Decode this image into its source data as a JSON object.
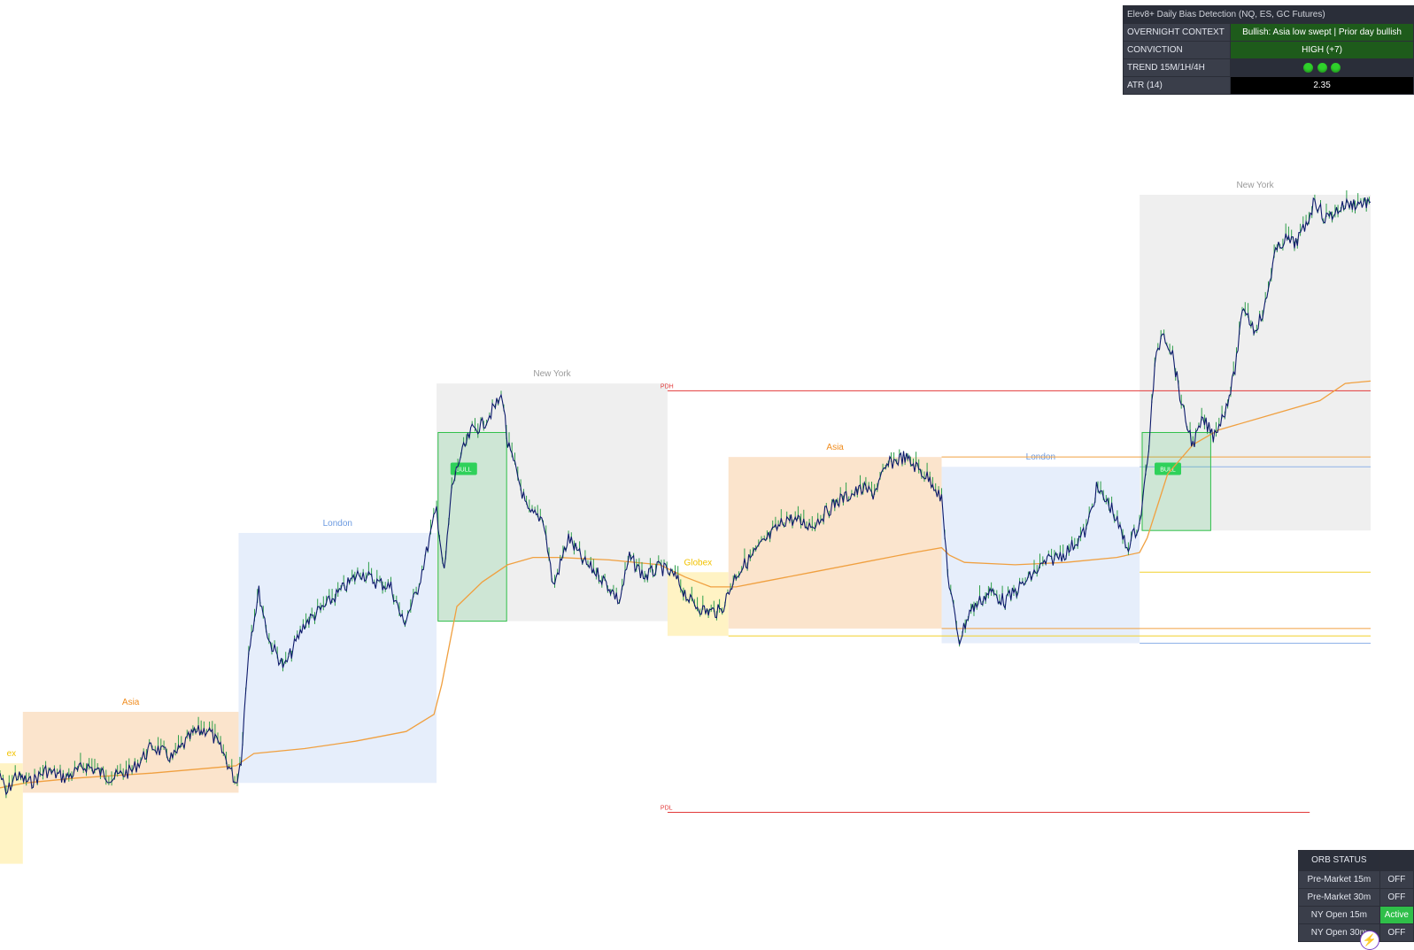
{
  "bias_panel": {
    "title": "Elev8+ Daily Bias Detection (NQ, ES, GC Futures)",
    "rows": [
      {
        "label": "OVERNIGHT CONTEXT",
        "value": "Bullish: Asia low swept | Prior day bullish"
      },
      {
        "label": "CONVICTION",
        "value": "HIGH (+7)"
      },
      {
        "label": "TREND 15M/1H/4H",
        "value": "",
        "dots": 3
      },
      {
        "label": "ATR (14)",
        "value": "2.35"
      }
    ]
  },
  "orb_panel": {
    "title": "ORB STATUS",
    "rows": [
      {
        "label": "Pre-Market 15m",
        "status": "OFF"
      },
      {
        "label": "Pre-Market 30m",
        "status": "OFF"
      },
      {
        "label": "NY Open 15m",
        "status": "Active"
      },
      {
        "label": "NY Open 30m",
        "status": "OFF"
      }
    ]
  },
  "chart_data": {
    "type": "candlestick",
    "sessions": [
      {
        "name": "Globex",
        "label": "ex",
        "color": "#fff3c4",
        "text_color": "#f2c200",
        "x0": 0.0,
        "x1": 0.045,
        "low": 0.07,
        "high": 0.48
      },
      {
        "name": "Asia",
        "label": "Asia",
        "color": "#fbe4cc",
        "text_color": "#f08c1e",
        "x0": 0.045,
        "x1": 0.47,
        "low": 0.36,
        "high": 0.69
      },
      {
        "name": "London",
        "label": "London",
        "color": "#e6eefb",
        "text_color": "#6b9ae0",
        "x0": 0.47,
        "x1": 0.86,
        "low": 0.4,
        "high": 1.42
      },
      {
        "name": "New York",
        "label": "New York",
        "color": "#efefef",
        "text_color": "#9a9a9a",
        "x0": 0.86,
        "x1": 1.315,
        "low": 1.06,
        "high": 2.03
      },
      {
        "name": "Globex",
        "label": "Globex",
        "color": "#fff3c4",
        "text_color": "#f2c200",
        "x0": 1.315,
        "x1": 1.435,
        "low": 1.0,
        "high": 1.26
      },
      {
        "name": "Asia",
        "label": "Asia",
        "color": "#fbe4cc",
        "text_color": "#f08c1e",
        "x0": 1.435,
        "x1": 1.855,
        "low": 1.03,
        "high": 1.73
      },
      {
        "name": "London",
        "label": "London",
        "color": "#e6eefb",
        "text_color": "#6b9ae0",
        "x0": 1.855,
        "x1": 2.245,
        "low": 0.97,
        "high": 1.69
      },
      {
        "name": "New York",
        "label": "New York",
        "color": "#efefef",
        "text_color": "#9a9a9a",
        "x0": 2.245,
        "x1": 2.7,
        "low": 1.43,
        "high": 2.8
      }
    ],
    "orb_boxes": [
      {
        "label": "BULL",
        "x0": 0.863,
        "x1": 0.998,
        "low": 1.06,
        "high": 1.83
      },
      {
        "label": "BULL",
        "x0": 2.25,
        "x1": 2.385,
        "low": 1.43,
        "high": 1.83
      }
    ],
    "levels": [
      {
        "name": "PDH",
        "label": "PDH",
        "color": "#e23a3a",
        "value": 2.0,
        "x0": 1.315,
        "x1": 2.7
      },
      {
        "name": "PDL",
        "label": "PDL",
        "color": "#e23a3a",
        "value": 0.28,
        "x0": 1.315,
        "x1": 2.58
      },
      {
        "name": "asia-high",
        "color": "#f0a040",
        "value": 1.73,
        "x0": 1.855,
        "x1": 2.7
      },
      {
        "name": "london-high",
        "color": "#8fb2e8",
        "value": 1.69,
        "x0": 2.245,
        "x1": 2.7
      },
      {
        "name": "london-low",
        "color": "#8fb2e8",
        "value": 0.97,
        "x0": 2.245,
        "x1": 2.7
      },
      {
        "name": "globex-high",
        "color": "#f2d02a",
        "value": 1.26,
        "x0": 2.245,
        "x1": 2.7
      },
      {
        "name": "globex-low",
        "color": "#f2d02a",
        "value": 1.0,
        "x0": 1.435,
        "x1": 2.7
      },
      {
        "name": "asia-low",
        "color": "#f0a040",
        "value": 1.03,
        "x0": 1.855,
        "x1": 2.7
      }
    ],
    "price_path": [
      [
        0.0,
        0.44
      ],
      [
        0.012,
        0.35
      ],
      [
        0.03,
        0.43
      ],
      [
        0.06,
        0.4
      ],
      [
        0.09,
        0.45
      ],
      [
        0.13,
        0.42
      ],
      [
        0.17,
        0.47
      ],
      [
        0.22,
        0.42
      ],
      [
        0.26,
        0.45
      ],
      [
        0.3,
        0.55
      ],
      [
        0.34,
        0.5
      ],
      [
        0.38,
        0.6
      ],
      [
        0.41,
        0.62
      ],
      [
        0.44,
        0.52
      ],
      [
        0.465,
        0.4
      ],
      [
        0.475,
        0.5
      ],
      [
        0.49,
        0.95
      ],
      [
        0.51,
        1.18
      ],
      [
        0.53,
        0.98
      ],
      [
        0.56,
        0.87
      ],
      [
        0.6,
        1.05
      ],
      [
        0.64,
        1.12
      ],
      [
        0.68,
        1.2
      ],
      [
        0.71,
        1.26
      ],
      [
        0.74,
        1.22
      ],
      [
        0.77,
        1.2
      ],
      [
        0.795,
        1.05
      ],
      [
        0.82,
        1.17
      ],
      [
        0.84,
        1.34
      ],
      [
        0.86,
        1.52
      ],
      [
        0.875,
        1.25
      ],
      [
        0.89,
        1.6
      ],
      [
        0.905,
        1.72
      ],
      [
        0.93,
        1.84
      ],
      [
        0.95,
        1.86
      ],
      [
        0.97,
        1.92
      ],
      [
        0.99,
        1.98
      ],
      [
        1.0,
        1.78
      ],
      [
        1.02,
        1.65
      ],
      [
        1.04,
        1.5
      ],
      [
        1.07,
        1.48
      ],
      [
        1.09,
        1.2
      ],
      [
        1.12,
        1.4
      ],
      [
        1.15,
        1.3
      ],
      [
        1.18,
        1.25
      ],
      [
        1.2,
        1.2
      ],
      [
        1.22,
        1.14
      ],
      [
        1.24,
        1.32
      ],
      [
        1.27,
        1.24
      ],
      [
        1.3,
        1.28
      ],
      [
        1.33,
        1.24
      ],
      [
        1.36,
        1.14
      ],
      [
        1.39,
        1.1
      ],
      [
        1.42,
        1.1
      ],
      [
        1.45,
        1.25
      ],
      [
        1.5,
        1.37
      ],
      [
        1.55,
        1.48
      ],
      [
        1.6,
        1.45
      ],
      [
        1.65,
        1.55
      ],
      [
        1.7,
        1.6
      ],
      [
        1.72,
        1.58
      ],
      [
        1.75,
        1.7
      ],
      [
        1.78,
        1.73
      ],
      [
        1.81,
        1.68
      ],
      [
        1.84,
        1.62
      ],
      [
        1.855,
        1.55
      ],
      [
        1.87,
        1.2
      ],
      [
        1.89,
        0.98
      ],
      [
        1.91,
        1.1
      ],
      [
        1.95,
        1.18
      ],
      [
        1.98,
        1.14
      ],
      [
        2.02,
        1.22
      ],
      [
        2.06,
        1.3
      ],
      [
        2.1,
        1.34
      ],
      [
        2.14,
        1.43
      ],
      [
        2.16,
        1.6
      ],
      [
        2.19,
        1.52
      ],
      [
        2.22,
        1.36
      ],
      [
        2.245,
        1.46
      ],
      [
        2.26,
        1.7
      ],
      [
        2.275,
        2.1
      ],
      [
        2.29,
        2.25
      ],
      [
        2.31,
        2.15
      ],
      [
        2.33,
        1.92
      ],
      [
        2.35,
        1.78
      ],
      [
        2.37,
        1.88
      ],
      [
        2.39,
        1.82
      ],
      [
        2.41,
        1.9
      ],
      [
        2.43,
        2.05
      ],
      [
        2.45,
        2.35
      ],
      [
        2.47,
        2.25
      ],
      [
        2.49,
        2.32
      ],
      [
        2.51,
        2.55
      ],
      [
        2.53,
        2.62
      ],
      [
        2.55,
        2.6
      ],
      [
        2.57,
        2.66
      ],
      [
        2.59,
        2.78
      ],
      [
        2.61,
        2.7
      ],
      [
        2.63,
        2.73
      ],
      [
        2.65,
        2.76
      ],
      [
        2.7,
        2.77
      ]
    ],
    "vwap_path": [
      [
        0.0,
        0.38
      ],
      [
        0.05,
        0.4
      ],
      [
        0.15,
        0.42
      ],
      [
        0.3,
        0.44
      ],
      [
        0.465,
        0.47
      ],
      [
        0.5,
        0.52
      ],
      [
        0.6,
        0.54
      ],
      [
        0.7,
        0.57
      ],
      [
        0.8,
        0.61
      ],
      [
        0.855,
        0.68
      ],
      [
        0.87,
        0.8
      ],
      [
        0.9,
        1.12
      ],
      [
        0.95,
        1.22
      ],
      [
        1.0,
        1.29
      ],
      [
        1.05,
        1.32
      ],
      [
        1.1,
        1.32
      ],
      [
        1.2,
        1.31
      ],
      [
        1.3,
        1.29
      ],
      [
        1.35,
        1.24
      ],
      [
        1.4,
        1.2
      ],
      [
        1.45,
        1.2
      ],
      [
        1.5,
        1.22
      ],
      [
        1.6,
        1.26
      ],
      [
        1.7,
        1.3
      ],
      [
        1.8,
        1.34
      ],
      [
        1.855,
        1.36
      ],
      [
        1.87,
        1.33
      ],
      [
        1.9,
        1.3
      ],
      [
        2.0,
        1.29
      ],
      [
        2.1,
        1.3
      ],
      [
        2.2,
        1.32
      ],
      [
        2.245,
        1.34
      ],
      [
        2.26,
        1.4
      ],
      [
        2.3,
        1.66
      ],
      [
        2.35,
        1.78
      ],
      [
        2.4,
        1.84
      ],
      [
        2.5,
        1.9
      ],
      [
        2.6,
        1.96
      ],
      [
        2.65,
        2.03
      ],
      [
        2.7,
        2.04
      ]
    ],
    "price_color": "#0d1a6b",
    "wick_color": "#2e9e4a",
    "vwap_color": "#f0a040"
  }
}
